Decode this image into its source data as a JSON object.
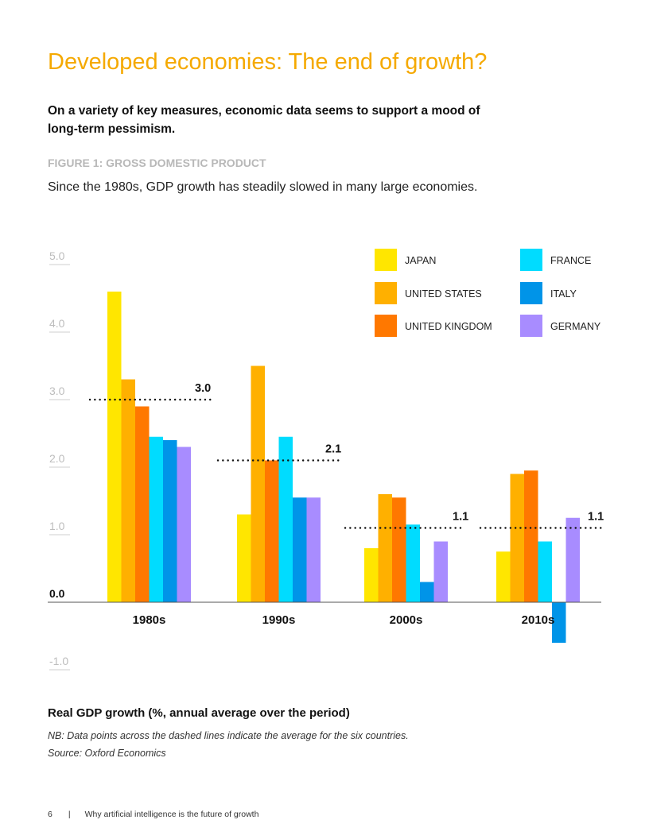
{
  "page": {
    "title": "Developed economies: The end of growth?",
    "lead": "On a variety of key measures, economic data seems to support a mood of long-term pessimism.",
    "figure_label": "FIGURE 1: GROSS DOMESTIC PRODUCT",
    "figure_description": "Since the 1980s, GDP growth has steadily slowed in many large economies.",
    "caption": "Real GDP growth (%, annual average over the period)",
    "note": "NB: Data points across the dashed lines indicate the average for the six countries.",
    "source": "Source: Oxford Economics",
    "footer_page": "6",
    "footer_separator": "|",
    "footer_text": "Why artificial intelligence is the future of growth"
  },
  "chart_data": {
    "type": "bar",
    "title": "FIGURE 1: GROSS DOMESTIC PRODUCT",
    "xlabel": "",
    "ylabel": "Real GDP growth (%, annual average over the period)",
    "ylim": [
      -1.0,
      5.0
    ],
    "y_ticks": [
      "5.0",
      "4.0",
      "3.0",
      "2.0",
      "1.0",
      "0.0",
      "-1.0"
    ],
    "y_tick_values": [
      5.0,
      4.0,
      3.0,
      2.0,
      1.0,
      0.0,
      -1.0
    ],
    "categories": [
      "1980s",
      "1990s",
      "2000s",
      "2010s"
    ],
    "series": [
      {
        "name": "JAPAN",
        "color": "#ffe600",
        "values": [
          4.6,
          1.3,
          0.8,
          0.75
        ]
      },
      {
        "name": "UNITED STATES",
        "color": "#ffb000",
        "values": [
          3.3,
          3.5,
          1.6,
          1.9
        ]
      },
      {
        "name": "UNITED KINGDOM",
        "color": "#ff7800",
        "values": [
          2.9,
          2.1,
          1.55,
          1.95
        ]
      },
      {
        "name": "FRANCE",
        "color": "#00dcff",
        "values": [
          2.45,
          2.45,
          1.15,
          0.9
        ]
      },
      {
        "name": "ITALY",
        "color": "#0094e8",
        "values": [
          2.4,
          1.55,
          0.3,
          -0.6
        ]
      },
      {
        "name": "GERMANY",
        "color": "#a88cff",
        "values": [
          2.3,
          1.55,
          0.9,
          1.25
        ]
      }
    ],
    "averages": [
      3.0,
      2.1,
      1.1,
      1.1
    ],
    "average_labels": [
      "3.0",
      "2.1",
      "1.1",
      "1.1"
    ],
    "grid": false,
    "legend_position": "top-right"
  }
}
